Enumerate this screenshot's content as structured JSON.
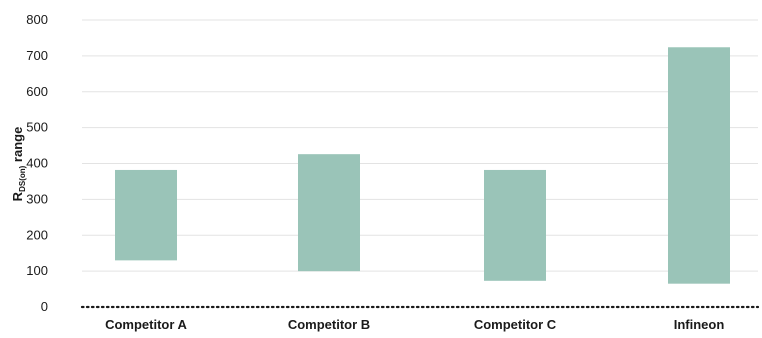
{
  "chart_data": {
    "type": "bar",
    "subtype": "floating-range",
    "title": "",
    "xlabel": "",
    "ylabel": {
      "main": "R",
      "subscript": "DS(on)",
      "suffix": " range"
    },
    "ylim": [
      0,
      800
    ],
    "yticks": [
      0,
      100,
      200,
      300,
      400,
      500,
      600,
      700,
      800
    ],
    "grid": true,
    "legend": "none",
    "bar_color": "#9ac4b8",
    "grid_color": "#e3e3e3",
    "baseline_style": "dotted",
    "categories": [
      "Competitor A",
      "Competitor B",
      "Competitor C",
      "Infineon"
    ],
    "ranges": [
      {
        "low": 130,
        "high": 382
      },
      {
        "low": 100,
        "high": 426
      },
      {
        "low": 73,
        "high": 382
      },
      {
        "low": 65,
        "high": 724
      }
    ]
  }
}
